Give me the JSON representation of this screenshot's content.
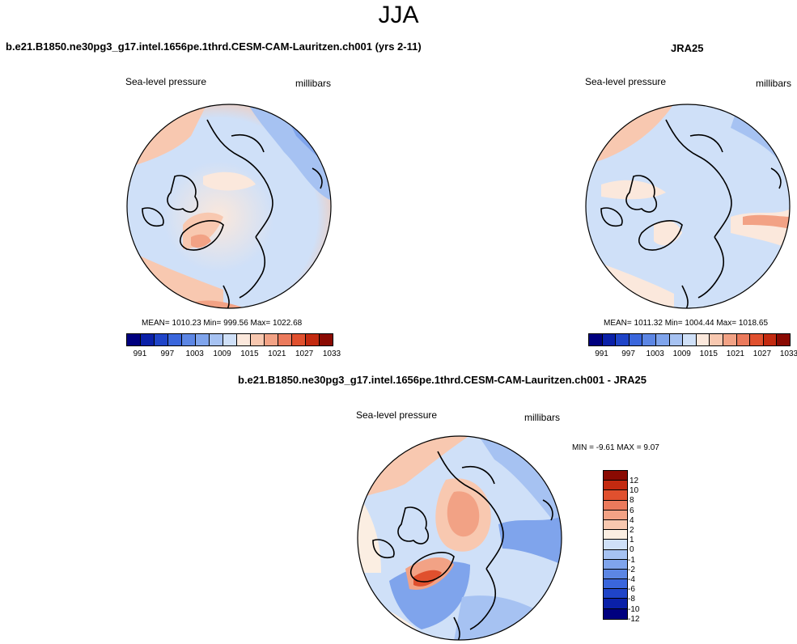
{
  "season_title": "JJA",
  "palette": [
    "#00007f",
    "#0a20a8",
    "#1f44c8",
    "#3a66dc",
    "#5c86e4",
    "#7fa4ec",
    "#a6c2f2",
    "#cfe0f8",
    "#fbe8dc",
    "#f8c8b0",
    "#f2a285",
    "#eb7a5c",
    "#e0502e",
    "#c32a10",
    "#8a0a02"
  ],
  "diff_palette": [
    "#00007f",
    "#0a20a8",
    "#1f44c8",
    "#3a66dc",
    "#5c86e4",
    "#7fa4ec",
    "#a6c2f2",
    "#cfe0f8",
    "#fbeee2",
    "#f8c8b0",
    "#f2a285",
    "#eb7a5c",
    "#e0502e",
    "#c32a10",
    "#8a0a02"
  ],
  "panels": {
    "model": {
      "case_title": "b.e21.B1850.ne30pg3_g17.intel.1656pe.1thrd.CESM-CAM-Lauritzen.ch001 (yrs 2-11)",
      "variable": "Sea-level pressure",
      "units": "millibars",
      "stats": "MEAN= 1010.23  Min= 999.56  Max= 1022.68",
      "colorbar_labels": [
        "991",
        "997",
        "1003",
        "1009",
        "1015",
        "1021",
        "1027",
        "1033"
      ]
    },
    "obs": {
      "case_title": "JRA25",
      "variable": "Sea-level pressure",
      "units": "millibars",
      "stats": "MEAN= 1011.32  Min= 1004.44  Max= 1018.65",
      "colorbar_labels": [
        "991",
        "997",
        "1003",
        "1009",
        "1015",
        "1021",
        "1027",
        "1033"
      ]
    },
    "diff": {
      "case_title": "b.e21.B1850.ne30pg3_g17.intel.1656pe.1thrd.CESM-CAM-Lauritzen.ch001 - JRA25",
      "variable": "Sea-level pressure",
      "units": "millibars",
      "stats": "MIN =  -9.61 MAX =  9.07",
      "colorbar_labels": [
        "12",
        "10",
        "8",
        "6",
        "4",
        "2",
        "1",
        "0",
        "-1",
        "-2",
        "-4",
        "-6",
        "-8",
        "-10",
        "-12"
      ]
    }
  }
}
